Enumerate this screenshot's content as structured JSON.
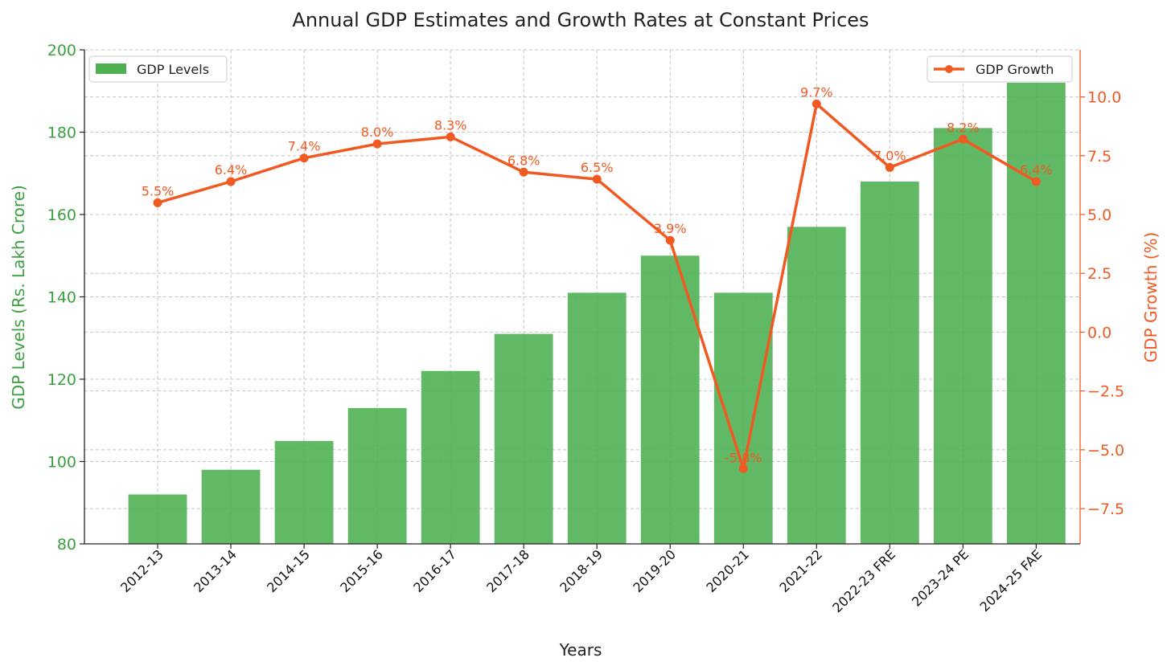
{
  "chart_data": {
    "type": "bar",
    "title": "Annual GDP Estimates and Growth Rates at Constant Prices",
    "xlabel": "Years",
    "categories": [
      "2012-13",
      "2013-14",
      "2014-15",
      "2015-16",
      "2016-17",
      "2017-18",
      "2018-19",
      "2019-20",
      "2020-21",
      "2021-22",
      "2022-23 FRE",
      "2023-24 PE",
      "2024-25 FAE"
    ],
    "series": [
      {
        "name": "GDP Levels",
        "type": "bar",
        "axis": "left",
        "color": "#4caf50",
        "values": [
          92,
          98,
          105,
          113,
          122,
          131,
          141,
          150,
          141,
          157,
          168,
          181,
          192
        ]
      },
      {
        "name": "GDP Growth",
        "type": "line",
        "axis": "right",
        "color": "#f05a22",
        "values": [
          5.5,
          6.4,
          7.4,
          8.0,
          8.3,
          6.8,
          6.5,
          3.9,
          -5.8,
          9.7,
          7.0,
          8.2,
          6.4
        ],
        "labels": [
          "5.5%",
          "6.4%",
          "7.4%",
          "8.0%",
          "8.3%",
          "6.8%",
          "6.5%",
          "3.9%",
          "-5.8%",
          "9.7%",
          "7.0%",
          "8.2%",
          "6.4%"
        ]
      }
    ],
    "y_left": {
      "label": "GDP Levels (Rs. Lakh Crore)",
      "ylim": [
        80,
        200
      ],
      "ticks": [
        80,
        100,
        120,
        140,
        160,
        180,
        200
      ],
      "tick_labels": [
        "80",
        "100",
        "120",
        "140",
        "160",
        "180",
        "200"
      ],
      "color": "#3aa040"
    },
    "y_right": {
      "label": "GDP Growth (%)",
      "ylim": [
        -9,
        12
      ],
      "ticks": [
        -7.5,
        -5.0,
        -2.5,
        0.0,
        2.5,
        5.0,
        7.5,
        10.0
      ],
      "tick_labels": [
        "−7.5",
        "−5.0",
        "−2.5",
        "0.0",
        "2.5",
        "5.0",
        "7.5",
        "10.0"
      ],
      "color": "#f05a22"
    },
    "grid": true,
    "legends": [
      {
        "series": "GDP Levels",
        "placement": "top-left"
      },
      {
        "series": "GDP Growth",
        "placement": "top-right"
      }
    ]
  }
}
